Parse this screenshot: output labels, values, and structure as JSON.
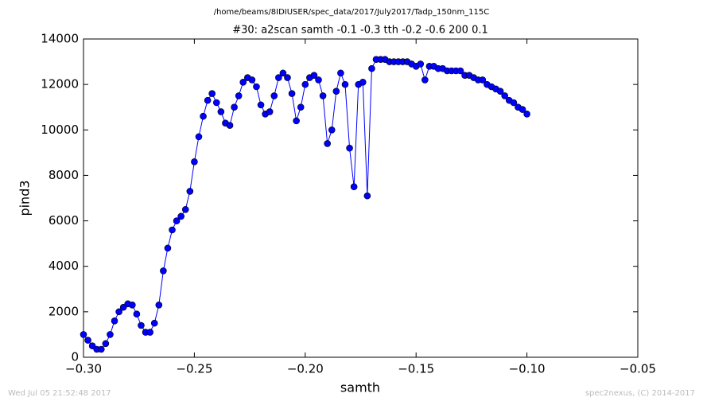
{
  "chart_data": {
    "type": "line",
    "title": "/home/beams/8IDIUSER/spec_data/2017/July2017/Tadp_150nm_115C",
    "subtitle": "#30: a2scan  samth -0.1 -0.3  tth -0.2 -0.6  200 0.1",
    "x_label": "samth",
    "y_label": "pind3",
    "footer_left": "Wed Jul 05 21:52:48 2017",
    "footer_right": "spec2nexus, (C) 2014-2017",
    "x": [
      -0.3,
      -0.298,
      -0.296,
      -0.294,
      -0.292,
      -0.29,
      -0.288,
      -0.286,
      -0.284,
      -0.282,
      -0.28,
      -0.278,
      -0.276,
      -0.274,
      -0.272,
      -0.27,
      -0.268,
      -0.266,
      -0.264,
      -0.262,
      -0.26,
      -0.258,
      -0.256,
      -0.254,
      -0.252,
      -0.25,
      -0.248,
      -0.246,
      -0.244,
      -0.242,
      -0.24,
      -0.238,
      -0.236,
      -0.234,
      -0.232,
      -0.23,
      -0.228,
      -0.226,
      -0.224,
      -0.222,
      -0.22,
      -0.218,
      -0.216,
      -0.214,
      -0.212,
      -0.21,
      -0.208,
      -0.206,
      -0.204,
      -0.202,
      -0.2,
      -0.198,
      -0.196,
      -0.194,
      -0.192,
      -0.19,
      -0.188,
      -0.186,
      -0.184,
      -0.182,
      -0.18,
      -0.178,
      -0.176,
      -0.174,
      -0.172,
      -0.17,
      -0.168,
      -0.166,
      -0.164,
      -0.162,
      -0.16,
      -0.158,
      -0.156,
      -0.154,
      -0.152,
      -0.15,
      -0.148,
      -0.146,
      -0.144,
      -0.142,
      -0.14,
      -0.138,
      -0.136,
      -0.134,
      -0.132,
      -0.13,
      -0.128,
      -0.126,
      -0.124,
      -0.122,
      -0.12,
      -0.118,
      -0.116,
      -0.114,
      -0.112,
      -0.11,
      -0.108,
      -0.106,
      -0.104,
      -0.102,
      -0.1
    ],
    "series": [
      {
        "color": "#0000ff",
        "values": [
          1000,
          750,
          500,
          350,
          350,
          600,
          1000,
          1600,
          2000,
          2200,
          2350,
          2300,
          1900,
          1400,
          1100,
          1100,
          1500,
          2300,
          3800,
          4800,
          5600,
          6000,
          6200,
          6500,
          7300,
          8600,
          9700,
          10600,
          11300,
          11600,
          11200,
          10800,
          10300,
          10200,
          11000,
          11500,
          12100,
          12300,
          12200,
          11900,
          11100,
          10700,
          10800,
          11500,
          12300,
          12500,
          12300,
          11600,
          10400,
          11000,
          12000,
          12300,
          12400,
          12200,
          11500,
          9400,
          10000,
          11700,
          12500,
          12000,
          9200,
          7500,
          12000,
          12100,
          7100,
          12700,
          13100,
          13100,
          13100,
          13000,
          13000,
          13000,
          13000,
          13000,
          12900,
          12800,
          12900,
          12200,
          12800,
          12800,
          12700,
          12700,
          12600,
          12600,
          12600,
          12600,
          12400,
          12400,
          12300,
          12200,
          12200,
          12000,
          11900,
          11800,
          11700,
          11500,
          11300,
          11200,
          11000,
          10900,
          10700
        ]
      }
    ],
    "xlim": [
      -0.3,
      -0.05
    ],
    "xticks": [
      {
        "value": -0.3,
        "label": "−0.30"
      },
      {
        "value": -0.25,
        "label": "−0.25"
      },
      {
        "value": -0.2,
        "label": "−0.20"
      },
      {
        "value": -0.15,
        "label": "−0.15"
      },
      {
        "value": -0.1,
        "label": "−0.10"
      },
      {
        "value": -0.05,
        "label": "−0.05"
      }
    ],
    "ylim": [
      0,
      14000
    ],
    "yticks": [
      0,
      2000,
      4000,
      6000,
      8000,
      10000,
      12000,
      14000
    ],
    "grid": false
  }
}
